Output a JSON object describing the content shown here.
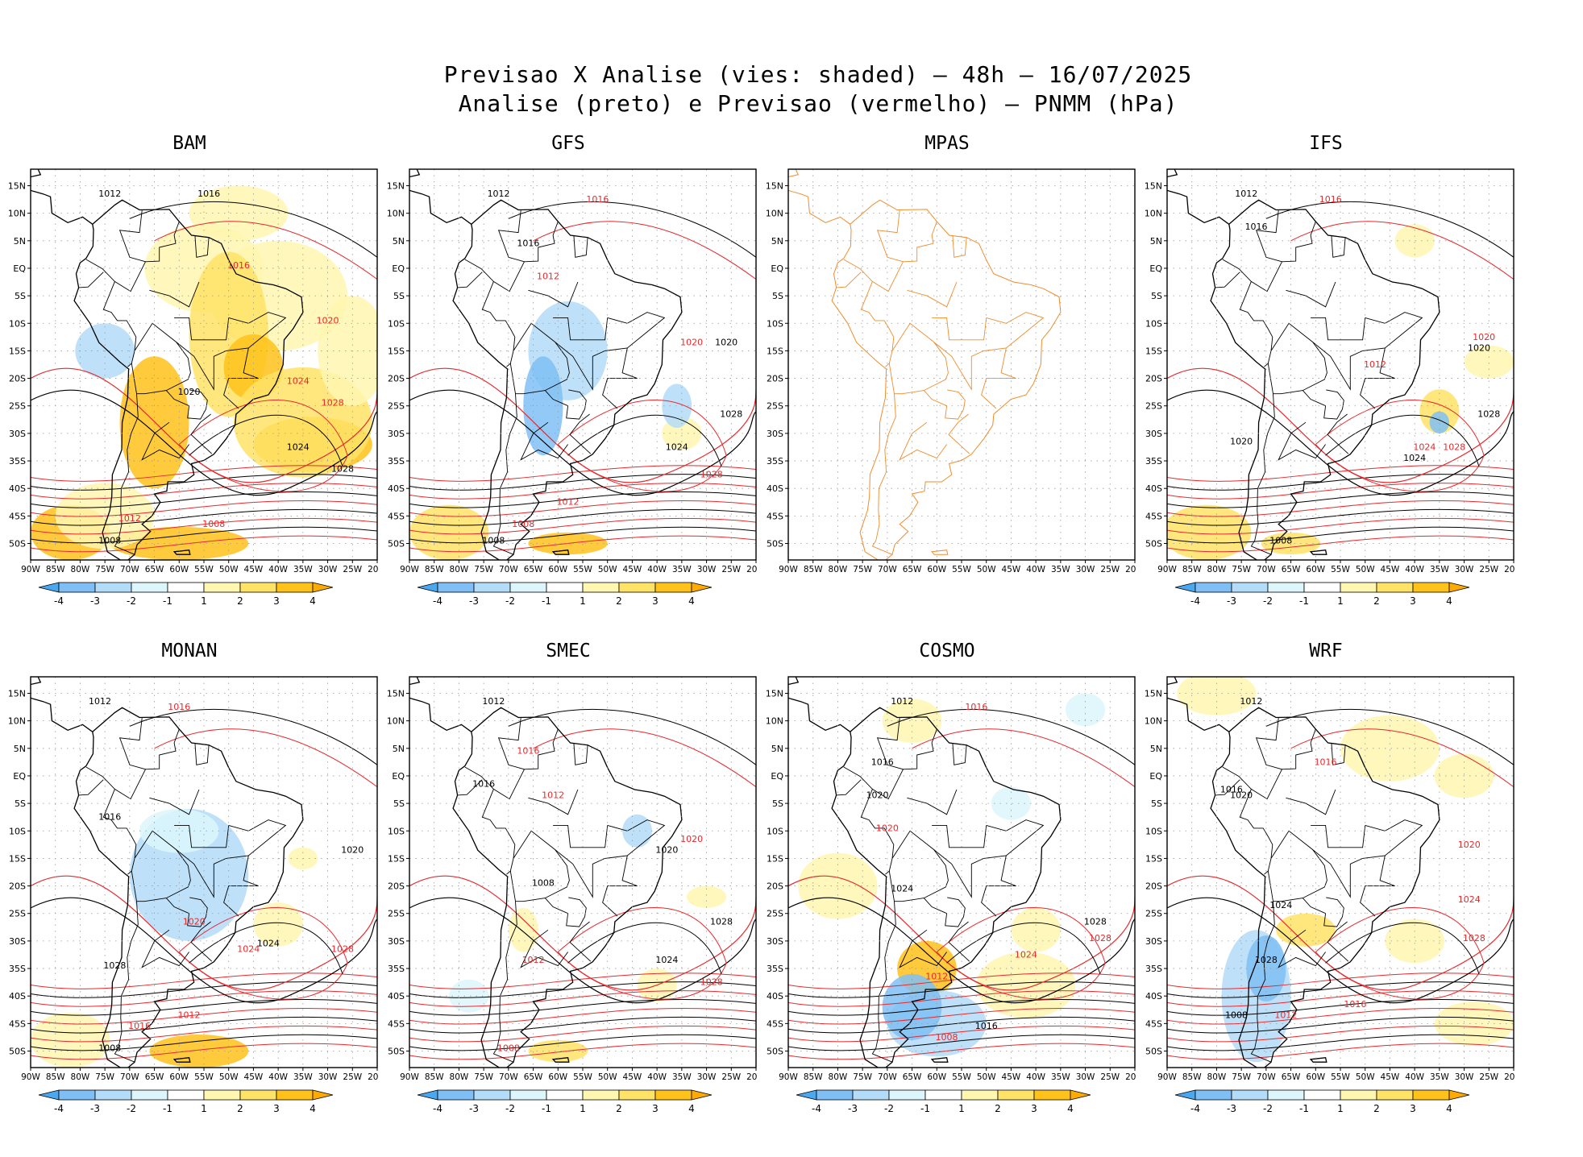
{
  "title": {
    "line1": "Previsao X Analise (vies: shaded) – 48h – 16/07/2025",
    "line2": "Analise (preto) e Previsao (vermelho) – PNMM (hPa)"
  },
  "axes": {
    "lon_labels": [
      "90W",
      "85W",
      "80W",
      "75W",
      "70W",
      "65W",
      "60W",
      "55W",
      "50W",
      "45W",
      "40W",
      "35W",
      "30W",
      "25W",
      "20W"
    ],
    "lat_labels": [
      "15N",
      "10N",
      "5N",
      "EQ",
      "5S",
      "10S",
      "15S",
      "20S",
      "25S",
      "30S",
      "35S",
      "40S",
      "45S",
      "50S"
    ]
  },
  "colorbar": {
    "labels": [
      "-4",
      "-3",
      "-2",
      "-1",
      "1",
      "2",
      "3",
      "4"
    ],
    "colors": [
      "#4aa8f0",
      "#7fbff5",
      "#b3dcf8",
      "#dcf6fc",
      "#ffffff",
      "#fff6b0",
      "#ffe366",
      "#ffc21a",
      "#ffaa00"
    ]
  },
  "colors": {
    "analysis": "#000000",
    "forecast": "#e8282c",
    "mpas_outline": "#f08c2c",
    "land_outline": "#000000"
  },
  "panels": [
    {
      "name": "BAM",
      "has_colorbar": true,
      "labels": [
        {
          "t": "1012",
          "c": "k"
        },
        {
          "t": "1016",
          "c": "k"
        },
        {
          "t": "1016",
          "c": "r"
        },
        {
          "t": "1020",
          "c": "r"
        },
        {
          "t": "1024",
          "c": "r"
        },
        {
          "t": "1028",
          "c": "r"
        },
        {
          "t": "1024",
          "c": "k"
        },
        {
          "t": "1028",
          "c": "k"
        },
        {
          "t": "1008",
          "c": "r"
        },
        {
          "t": "1008",
          "c": "k"
        },
        {
          "t": "1012",
          "c": "r"
        },
        {
          "t": "1020",
          "c": "k"
        }
      ]
    },
    {
      "name": "GFS",
      "has_colorbar": true,
      "labels": [
        {
          "t": "1012",
          "c": "k"
        },
        {
          "t": "1016",
          "c": "k"
        },
        {
          "t": "1016",
          "c": "r"
        },
        {
          "t": "1012",
          "c": "r"
        },
        {
          "t": "1020",
          "c": "r"
        },
        {
          "t": "1020",
          "c": "k"
        },
        {
          "t": "1024",
          "c": "k"
        },
        {
          "t": "1028",
          "c": "k"
        },
        {
          "t": "1028",
          "c": "r"
        },
        {
          "t": "1008",
          "c": "k"
        },
        {
          "t": "1012",
          "c": "r"
        },
        {
          "t": "1008",
          "c": "r"
        }
      ]
    },
    {
      "name": "MPAS",
      "has_colorbar": false,
      "labels": []
    },
    {
      "name": "IFS",
      "has_colorbar": true,
      "labels": [
        {
          "t": "1012",
          "c": "k"
        },
        {
          "t": "1016",
          "c": "k"
        },
        {
          "t": "1016",
          "c": "r"
        },
        {
          "t": "1020",
          "c": "r"
        },
        {
          "t": "1020",
          "c": "k"
        },
        {
          "t": "1024",
          "c": "r"
        },
        {
          "t": "1028",
          "c": "k"
        },
        {
          "t": "1028",
          "c": "r"
        },
        {
          "t": "1024",
          "c": "k"
        },
        {
          "t": "1012",
          "c": "r"
        },
        {
          "t": "1008",
          "c": "k"
        },
        {
          "t": "1020",
          "c": "k"
        }
      ]
    },
    {
      "name": "MONAN",
      "has_colorbar": true,
      "labels": [
        {
          "t": "1012",
          "c": "k"
        },
        {
          "t": "1016",
          "c": "k"
        },
        {
          "t": "1016",
          "c": "r"
        },
        {
          "t": "1020",
          "c": "k"
        },
        {
          "t": "1020",
          "c": "r"
        },
        {
          "t": "1024",
          "c": "k"
        },
        {
          "t": "1024",
          "c": "r"
        },
        {
          "t": "1028",
          "c": "k"
        },
        {
          "t": "1028",
          "c": "r"
        },
        {
          "t": "1008",
          "c": "k"
        },
        {
          "t": "1012",
          "c": "r"
        },
        {
          "t": "1016",
          "c": "r"
        }
      ]
    },
    {
      "name": "SMEC",
      "has_colorbar": true,
      "labels": [
        {
          "t": "1012",
          "c": "k"
        },
        {
          "t": "1016",
          "c": "k"
        },
        {
          "t": "1016",
          "c": "r"
        },
        {
          "t": "1012",
          "c": "r"
        },
        {
          "t": "1020",
          "c": "r"
        },
        {
          "t": "1020",
          "c": "k"
        },
        {
          "t": "1024",
          "c": "k"
        },
        {
          "t": "1028",
          "c": "k"
        },
        {
          "t": "1028",
          "c": "r"
        },
        {
          "t": "1008",
          "c": "k"
        },
        {
          "t": "1012",
          "c": "r"
        },
        {
          "t": "1008",
          "c": "r"
        }
      ]
    },
    {
      "name": "COSMO",
      "has_colorbar": true,
      "labels": [
        {
          "t": "1012",
          "c": "k"
        },
        {
          "t": "1016",
          "c": "k"
        },
        {
          "t": "1016",
          "c": "r"
        },
        {
          "t": "1020",
          "c": "k"
        },
        {
          "t": "1020",
          "c": "r"
        },
        {
          "t": "1024",
          "c": "k"
        },
        {
          "t": "1024",
          "c": "r"
        },
        {
          "t": "1028",
          "c": "k"
        },
        {
          "t": "1028",
          "c": "r"
        },
        {
          "t": "1012",
          "c": "r"
        },
        {
          "t": "1016",
          "c": "k"
        },
        {
          "t": "1008",
          "c": "r"
        }
      ]
    },
    {
      "name": "WRF",
      "has_colorbar": true,
      "labels": [
        {
          "t": "1012",
          "c": "k"
        },
        {
          "t": "1016",
          "c": "k"
        },
        {
          "t": "1016",
          "c": "r"
        },
        {
          "t": "1020",
          "c": "k"
        },
        {
          "t": "1020",
          "c": "r"
        },
        {
          "t": "1024",
          "c": "k"
        },
        {
          "t": "1024",
          "c": "r"
        },
        {
          "t": "1028",
          "c": "k"
        },
        {
          "t": "1028",
          "c": "r"
        },
        {
          "t": "1008",
          "c": "k"
        },
        {
          "t": "1012",
          "c": "r"
        },
        {
          "t": "1016",
          "c": "r"
        }
      ]
    }
  ]
}
